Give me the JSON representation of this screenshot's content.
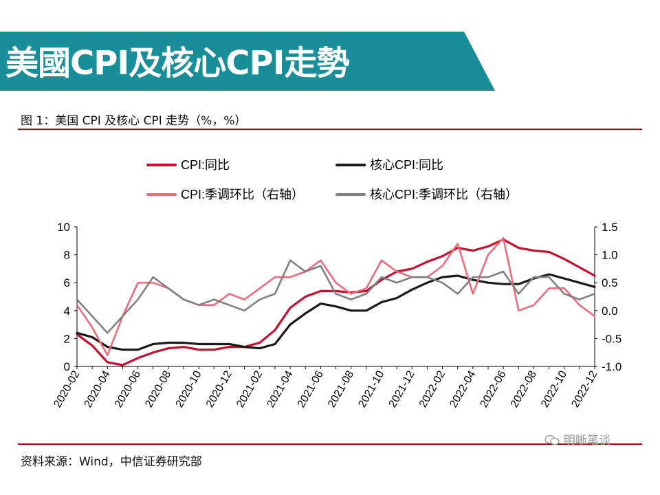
{
  "header": {
    "banner_title": "美國CPI及核心CPI走勢",
    "figure_caption": "图 1：美国 CPI 及核心 CPI 走势（%，%）"
  },
  "footer": {
    "source": "资料来源：Wind，中信证券研究部",
    "watermark": "明晰笔谈"
  },
  "chart_data": {
    "type": "line",
    "title": "",
    "xlabel": "",
    "ylabel": "",
    "x": [
      "2020-02",
      "2020-03",
      "2020-04",
      "2020-05",
      "2020-06",
      "2020-07",
      "2020-08",
      "2020-09",
      "2020-10",
      "2020-11",
      "2020-12",
      "2021-01",
      "2021-02",
      "2021-03",
      "2021-04",
      "2021-05",
      "2021-06",
      "2021-07",
      "2021-08",
      "2021-09",
      "2021-10",
      "2021-11",
      "2021-12",
      "2022-01",
      "2022-02",
      "2022-03",
      "2022-04",
      "2022-05",
      "2022-06",
      "2022-07",
      "2022-08",
      "2022-09",
      "2022-10",
      "2022-11",
      "2022-12"
    ],
    "x_tick_labels": [
      "2020-02",
      "2020-04",
      "2020-06",
      "2020-08",
      "2020-10",
      "2020-12",
      "2021-02",
      "2021-04",
      "2021-06",
      "2021-08",
      "2021-10",
      "2021-12",
      "2022-02",
      "2022-04",
      "2022-06",
      "2022-08",
      "2022-10",
      "2022-12"
    ],
    "y_left": {
      "min": 0,
      "max": 10,
      "ticks": [
        "0",
        "2",
        "4",
        "6",
        "8",
        "10"
      ]
    },
    "y_right": {
      "min": -1.0,
      "max": 1.5,
      "ticks": [
        "-1.0",
        "-0.5",
        "0.0",
        "0.5",
        "1.0",
        "1.5"
      ]
    },
    "grid": false,
    "legend_position": "top",
    "series": [
      {
        "name": "CPI:同比",
        "axis": "left",
        "color": "#c8102e",
        "values": [
          2.3,
          1.5,
          0.3,
          0.1,
          0.6,
          1.0,
          1.3,
          1.4,
          1.2,
          1.2,
          1.4,
          1.4,
          1.7,
          2.6,
          4.2,
          5.0,
          5.4,
          5.4,
          5.3,
          5.4,
          6.2,
          6.8,
          7.0,
          7.5,
          7.9,
          8.5,
          8.3,
          8.6,
          9.1,
          8.5,
          8.3,
          8.2,
          7.7,
          7.1,
          6.5
        ]
      },
      {
        "name": "核心CPI:同比",
        "axis": "left",
        "color": "#1a1a1a",
        "values": [
          2.4,
          2.1,
          1.4,
          1.2,
          1.2,
          1.6,
          1.7,
          1.7,
          1.6,
          1.6,
          1.6,
          1.4,
          1.3,
          1.6,
          3.0,
          3.8,
          4.5,
          4.3,
          4.0,
          4.0,
          4.6,
          4.9,
          5.5,
          6.0,
          6.4,
          6.5,
          6.2,
          6.0,
          5.9,
          5.9,
          6.3,
          6.6,
          6.3,
          6.0,
          5.7
        ]
      },
      {
        "name": "CPI:季调环比（右轴）",
        "axis": "right",
        "color": "#f06a7a",
        "values": [
          0.1,
          -0.3,
          -0.8,
          -0.1,
          0.5,
          0.5,
          0.4,
          0.2,
          0.1,
          0.1,
          0.3,
          0.2,
          0.4,
          0.6,
          0.6,
          0.7,
          0.9,
          0.5,
          0.3,
          0.4,
          0.9,
          0.7,
          0.6,
          0.6,
          0.8,
          1.2,
          0.3,
          1.0,
          1.3,
          0.0,
          0.1,
          0.4,
          0.4,
          0.1,
          -0.1
        ]
      },
      {
        "name": "核心CPI:季调环比（右轴）",
        "axis": "right",
        "color": "#808080",
        "values": [
          0.2,
          -0.1,
          -0.4,
          -0.1,
          0.2,
          0.6,
          0.4,
          0.2,
          0.1,
          0.2,
          0.1,
          0.0,
          0.2,
          0.3,
          0.9,
          0.7,
          0.8,
          0.3,
          0.2,
          0.3,
          0.6,
          0.5,
          0.6,
          0.6,
          0.5,
          0.3,
          0.6,
          0.6,
          0.7,
          0.3,
          0.6,
          0.6,
          0.3,
          0.2,
          0.3
        ]
      }
    ]
  }
}
